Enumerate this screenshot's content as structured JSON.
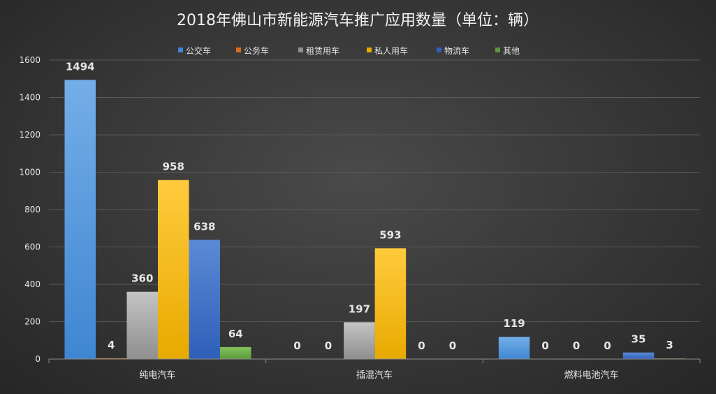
{
  "chart_data": {
    "type": "bar",
    "title": "2018年佛山市新能源汽车推广应用数量（单位：辆）",
    "categories": [
      "纯电汽车",
      "插混汽车",
      "燃料电池汽车"
    ],
    "series": [
      {
        "name": "公交车",
        "values": [
          1494,
          0,
          119
        ]
      },
      {
        "name": "公务车",
        "values": [
          4,
          0,
          0
        ]
      },
      {
        "name": "租赁用车",
        "values": [
          360,
          197,
          0
        ]
      },
      {
        "name": "私人用车",
        "values": [
          958,
          593,
          0
        ]
      },
      {
        "name": "物流车",
        "values": [
          638,
          0,
          35
        ]
      },
      {
        "name": "其他",
        "values": [
          64,
          0,
          3
        ]
      }
    ],
    "ylim": [
      0,
      1600
    ],
    "yticks": [
      0,
      200,
      400,
      600,
      800,
      1000,
      1200,
      1400,
      1600
    ],
    "xlabel": "",
    "ylabel": "",
    "grid": true,
    "legend_position": "top"
  },
  "colors": {
    "公交车": [
      "#74aee8",
      "#3f86d2"
    ],
    "公务车": [
      "#f0903f",
      "#d96e1c"
    ],
    "租赁用车": [
      "#c4c4c4",
      "#8f8f8f"
    ],
    "私人用车": [
      "#ffcb3d",
      "#e8aa00"
    ],
    "物流车": [
      "#5b8ad6",
      "#2e5fb8"
    ],
    "其他": [
      "#84c35e",
      "#5a9a3a"
    ]
  }
}
